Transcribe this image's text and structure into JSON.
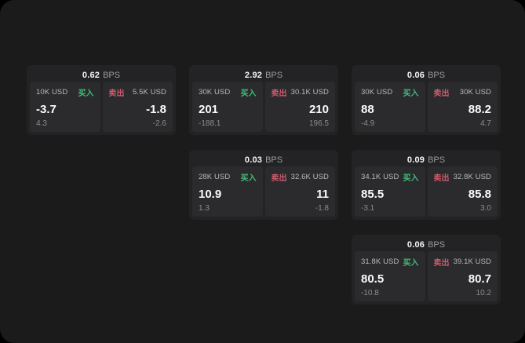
{
  "panel": {
    "background": "#1b1b1c",
    "outer_background": "#000000"
  },
  "labels": {
    "spread_unit": "BPS",
    "buy": "买入",
    "sell": "卖出"
  },
  "colors": {
    "buy_accent": "#3fbe7b",
    "sell_accent": "#cf5a6c",
    "card_background": "#232325",
    "tile_background": "#2b2b2d"
  },
  "cards": [
    {
      "row": 1,
      "col": 1,
      "spread": "0.62",
      "buy": {
        "size": "10K USD",
        "price": "-3.7",
        "delta": "4.3"
      },
      "sell": {
        "size": "5.5K USD",
        "price": "-1.8",
        "delta": "-2.6"
      }
    },
    {
      "row": 1,
      "col": 2,
      "spread": "2.92",
      "buy": {
        "size": "30K USD",
        "price": "201",
        "delta": "-188.1"
      },
      "sell": {
        "size": "30.1K USD",
        "price": "210",
        "delta": "196.5"
      }
    },
    {
      "row": 1,
      "col": 3,
      "spread": "0.06",
      "buy": {
        "size": "30K USD",
        "price": "88",
        "delta": "-4.9"
      },
      "sell": {
        "size": "30K USD",
        "price": "88.2",
        "delta": "4.7"
      }
    },
    {
      "row": 2,
      "col": 2,
      "spread": "0.03",
      "buy": {
        "size": "28K USD",
        "price": "10.9",
        "delta": "1.3"
      },
      "sell": {
        "size": "32.6K USD",
        "price": "11",
        "delta": "-1.8"
      }
    },
    {
      "row": 2,
      "col": 3,
      "spread": "0.09",
      "buy": {
        "size": "34.1K USD",
        "price": "85.5",
        "delta": "-3.1"
      },
      "sell": {
        "size": "32.8K USD",
        "price": "85.8",
        "delta": "3.0"
      }
    },
    {
      "row": 3,
      "col": 3,
      "spread": "0.06",
      "buy": {
        "size": "31.8K USD",
        "price": "80.5",
        "delta": "-10.8"
      },
      "sell": {
        "size": "39.1K USD",
        "price": "80.7",
        "delta": "10.2"
      }
    }
  ]
}
